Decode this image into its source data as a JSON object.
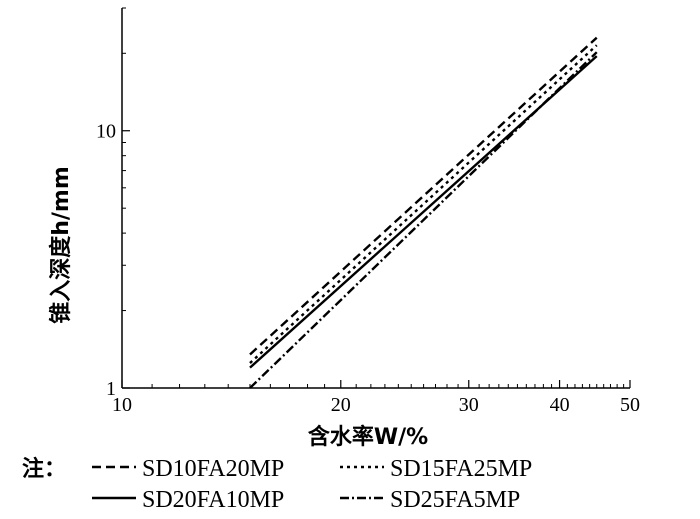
{
  "chart_data": {
    "type": "line",
    "xlabel": "含水率W/%",
    "ylabel": "锥入深度h/mm",
    "xscale": "log",
    "yscale": "log",
    "xlim": [
      10,
      50
    ],
    "ylim": [
      1,
      30
    ],
    "xticks": [
      10,
      20,
      30,
      40,
      50
    ],
    "yticks": [
      1,
      10
    ],
    "grid": false,
    "legend_placement": "bottom",
    "note_label": "注：",
    "series": [
      {
        "name": "SD10FA20MP",
        "dash": "dashed",
        "x": [
          15,
          45
        ],
        "y": [
          1.35,
          23.0
        ]
      },
      {
        "name": "SD15FA25MP",
        "dash": "dotted",
        "x": [
          15,
          45
        ],
        "y": [
          1.25,
          21.5
        ]
      },
      {
        "name": "SD20FA10MP",
        "dash": "solid",
        "x": [
          15,
          45
        ],
        "y": [
          1.2,
          19.5
        ]
      },
      {
        "name": "SD25FA5MP",
        "dash": "dashdot",
        "x": [
          15,
          45
        ],
        "y": [
          1.0,
          20.2
        ]
      }
    ]
  }
}
